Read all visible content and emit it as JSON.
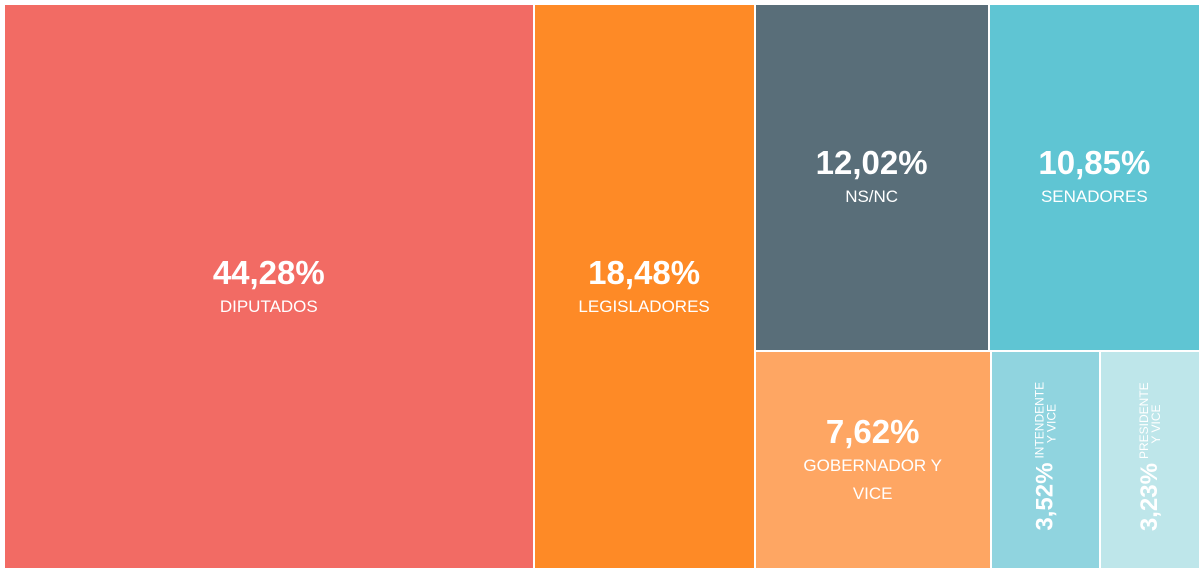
{
  "chart_data": {
    "type": "treemap",
    "categories": [
      "DIPUTADOS",
      "LEGISLADORES",
      "NS/NC",
      "SENADORES",
      "GOBERNADOR Y VICE",
      "INTENDENTE Y VICE",
      "PRESIDENTE Y VICE"
    ],
    "values": [
      44.28,
      18.48,
      12.02,
      10.85,
      7.62,
      3.52,
      3.23
    ],
    "value_labels": [
      "44,28%",
      "18,48%",
      "12,02%",
      "10,85%",
      "7,62%",
      "3,52%",
      "3,23%"
    ],
    "colors": [
      "#f26b64",
      "#fe8a26",
      "#596e79",
      "#5fc5d3",
      "#fea663",
      "#90d4df",
      "#bee6ea"
    ]
  }
}
